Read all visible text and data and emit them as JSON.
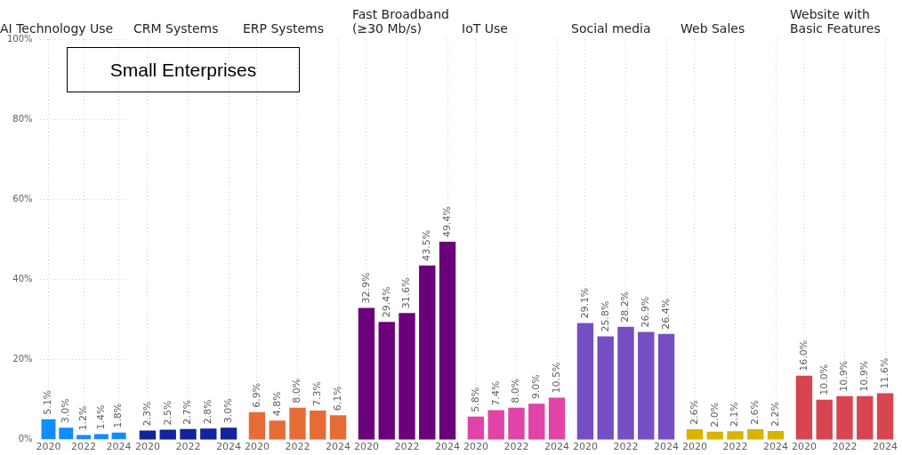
{
  "chart_data": [
    {
      "type": "bar",
      "title": "AI Technology Use",
      "categories": [
        "2020",
        null,
        "2022",
        null,
        "2024"
      ],
      "values": [
        5.1,
        3.0,
        1.2,
        1.4,
        1.8
      ],
      "value_labels": [
        "5.1%",
        "3.0%",
        "1.2%",
        "1.4%",
        "1.8%"
      ],
      "color": "#118dff",
      "ylim": [
        0,
        100
      ],
      "yticks": [
        {
          "value": 0,
          "label": "0%"
        },
        {
          "value": 20,
          "label": "20%"
        },
        {
          "value": 40,
          "label": "40%"
        },
        {
          "value": 60,
          "label": "60%"
        },
        {
          "value": 80,
          "label": "80%"
        },
        {
          "value": 100,
          "label": "100%"
        }
      ],
      "grid": true,
      "legend": false,
      "annotations": [
        "Small Enterprises"
      ]
    },
    {
      "type": "bar",
      "title": "CRM Systems",
      "categories": [
        "2020",
        null,
        "2022",
        null,
        "2024"
      ],
      "values": [
        2.3,
        2.5,
        2.7,
        2.8,
        3.0
      ],
      "value_labels": [
        "2.3%",
        "2.5%",
        "2.7%",
        "2.8%",
        "3.0%"
      ],
      "color": "#12239e",
      "ylim": [
        0,
        100
      ],
      "grid": "x",
      "legend": false,
      "tick_labels": "x"
    },
    {
      "type": "bar",
      "title": "ERP Systems",
      "categories": [
        "2020",
        null,
        "2022",
        null,
        "2024"
      ],
      "values": [
        6.9,
        4.8,
        8.0,
        7.3,
        6.1
      ],
      "value_labels": [
        "6.9%",
        "4.8%",
        "8.0%",
        "7.3%",
        "6.1%"
      ],
      "color": "#e66c37",
      "ylim": [
        0,
        100
      ],
      "grid": "x",
      "legend": false,
      "tick_labels": "x"
    },
    {
      "type": "bar",
      "title": "Fast Broadband (≥30 Mb/s)",
      "categories": [
        "2020",
        null,
        "2022",
        null,
        "2024"
      ],
      "values": [
        32.9,
        29.4,
        31.6,
        43.5,
        49.4
      ],
      "value_labels": [
        "32.9%",
        "29.4%",
        "31.6%",
        "43.5%",
        "49.4%"
      ],
      "color": "#6b007b",
      "ylim": [
        0,
        100
      ],
      "grid": "x",
      "legend": false,
      "tick_labels": "x"
    },
    {
      "type": "bar",
      "title": "IoT Use",
      "categories": [
        "2020",
        null,
        "2022",
        null,
        "2024"
      ],
      "values": [
        5.8,
        7.4,
        8.0,
        9.0,
        10.5
      ],
      "value_labels": [
        "5.8%",
        "7.4%",
        "8.0%",
        "9.0%",
        "10.5%"
      ],
      "color": "#e044a7",
      "ylim": [
        0,
        100
      ],
      "grid": "x",
      "legend": false,
      "tick_labels": "x"
    },
    {
      "type": "bar",
      "title": "Social media",
      "categories": [
        "2020",
        null,
        "2022",
        null,
        "2024"
      ],
      "values": [
        29.1,
        25.8,
        28.2,
        26.9,
        26.4
      ],
      "value_labels": [
        "29.1%",
        "25.8%",
        "28.2%",
        "26.9%",
        "26.4%"
      ],
      "color": "#744ec2",
      "ylim": [
        0,
        100
      ],
      "grid": "x",
      "legend": false,
      "tick_labels": "x"
    },
    {
      "type": "bar",
      "title": "Web Sales",
      "categories": [
        "2020",
        null,
        "2022",
        null,
        "2024"
      ],
      "values": [
        2.6,
        2.0,
        2.1,
        2.6,
        2.2
      ],
      "value_labels": [
        "2.6%",
        "2.0%",
        "2.1%",
        "2.6%",
        "2.2%"
      ],
      "color": "#d9b300",
      "ylim": [
        0,
        100
      ],
      "grid": "x",
      "legend": false,
      "tick_labels": "x"
    },
    {
      "type": "bar",
      "title": "Website with Basic Features",
      "categories": [
        "2020",
        null,
        "2022",
        null,
        "2024"
      ],
      "values": [
        16.0,
        10.0,
        10.9,
        10.9,
        11.6
      ],
      "value_labels": [
        "16.0%",
        "10.0%",
        "10.9%",
        "10.9%",
        "11.6%"
      ],
      "color": "#d64550",
      "ylim": [
        0,
        100
      ],
      "grid": "x",
      "legend": false,
      "tick_labels": "x"
    }
  ]
}
